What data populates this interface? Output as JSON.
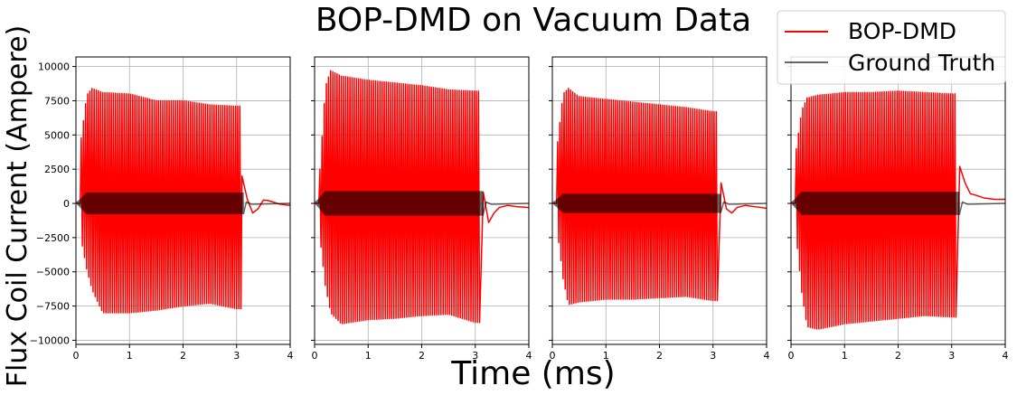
{
  "chart_data": {
    "type": "line",
    "title": "BOP-DMD on Vacuum Data",
    "xlabel": "Time (ms)",
    "ylabel": "Flux Coil Current (Ampere)",
    "xlim": [
      0,
      4
    ],
    "ylim": [
      -10300,
      10700
    ],
    "grid": true,
    "shared_y": true,
    "legend_position": "top-right",
    "xticks": [
      "0",
      "1",
      "2",
      "3",
      "4"
    ],
    "yticks": [
      "10000",
      "7500",
      "5000",
      "2500",
      "0",
      "−2500",
      "−5000",
      "−7500",
      "−10000"
    ],
    "ytick_values": [
      10000,
      7500,
      5000,
      2500,
      0,
      -2500,
      -5000,
      -7500,
      -10000
    ],
    "series_styles": {
      "BOP-DMD": {
        "color": "#ff0000"
      },
      "Ground Truth": {
        "color": "#000000",
        "opacity": 0.6
      }
    },
    "legend": [
      "BOP-DMD",
      "Ground Truth"
    ],
    "panels": [
      {
        "oscillation_end_ms": 3.08,
        "envelope_ms": [
          0.1,
          0.2,
          0.3,
          0.5,
          1.0,
          1.5,
          2.0,
          2.5,
          3.0
        ],
        "upper_envelope": [
          4800,
          7900,
          8400,
          8100,
          8000,
          7500,
          7500,
          7200,
          7100
        ],
        "lower_envelope": [
          -2700,
          -4800,
          -6300,
          -8000,
          -8000,
          -7800,
          -7500,
          -7300,
          -7700
        ],
        "ground_truth_amplitude": 800,
        "tail": [
          [
            3.1,
            2000
          ],
          [
            3.2,
            300
          ],
          [
            3.3,
            -700
          ],
          [
            3.4,
            -400
          ],
          [
            3.5,
            250
          ],
          [
            3.6,
            200
          ],
          [
            3.8,
            -50
          ],
          [
            4.0,
            -150
          ]
        ]
      },
      {
        "oscillation_end_ms": 3.1,
        "envelope_ms": [
          0.1,
          0.2,
          0.3,
          0.5,
          1.0,
          1.5,
          2.0,
          2.5,
          3.0
        ],
        "upper_envelope": [
          2500,
          8500,
          9700,
          9300,
          9000,
          8800,
          8600,
          8300,
          8200
        ],
        "lower_envelope": [
          -2500,
          -6000,
          -8000,
          -8800,
          -8500,
          -8400,
          -8200,
          -8100,
          -8700
        ],
        "ground_truth_amplitude": 900,
        "tail": [
          [
            3.15,
            800
          ],
          [
            3.25,
            -1400
          ],
          [
            3.35,
            -700
          ],
          [
            3.45,
            -300
          ],
          [
            3.6,
            -150
          ],
          [
            3.8,
            -250
          ],
          [
            4.0,
            -300
          ]
        ]
      },
      {
        "oscillation_end_ms": 3.1,
        "envelope_ms": [
          0.1,
          0.2,
          0.3,
          0.5,
          1.0,
          1.5,
          2.0,
          2.5,
          3.0
        ],
        "upper_envelope": [
          4500,
          8000,
          8400,
          7800,
          7600,
          7400,
          7200,
          7000,
          6700
        ],
        "lower_envelope": [
          -2200,
          -5500,
          -7400,
          -7200,
          -7000,
          -7000,
          -6900,
          -6800,
          -7100
        ],
        "ground_truth_amplitude": 700,
        "tail": [
          [
            3.15,
            1500
          ],
          [
            3.25,
            -400
          ],
          [
            3.35,
            -700
          ],
          [
            3.45,
            -300
          ],
          [
            3.6,
            -150
          ],
          [
            3.8,
            -250
          ],
          [
            4.0,
            -350
          ]
        ]
      },
      {
        "oscillation_end_ms": 3.1,
        "envelope_ms": [
          0.1,
          0.2,
          0.3,
          0.5,
          1.0,
          1.5,
          2.0,
          2.5,
          3.0
        ],
        "upper_envelope": [
          4000,
          6800,
          7700,
          7900,
          8100,
          8100,
          8200,
          8100,
          8000
        ],
        "lower_envelope": [
          -2500,
          -6500,
          -9000,
          -9200,
          -8800,
          -8600,
          -8400,
          -8200,
          -8300
        ],
        "ground_truth_amplitude": 850,
        "tail": [
          [
            3.15,
            2700
          ],
          [
            3.25,
            1500
          ],
          [
            3.35,
            700
          ],
          [
            3.45,
            600
          ],
          [
            3.6,
            400
          ],
          [
            3.8,
            300
          ],
          [
            4.0,
            300
          ]
        ]
      }
    ]
  }
}
